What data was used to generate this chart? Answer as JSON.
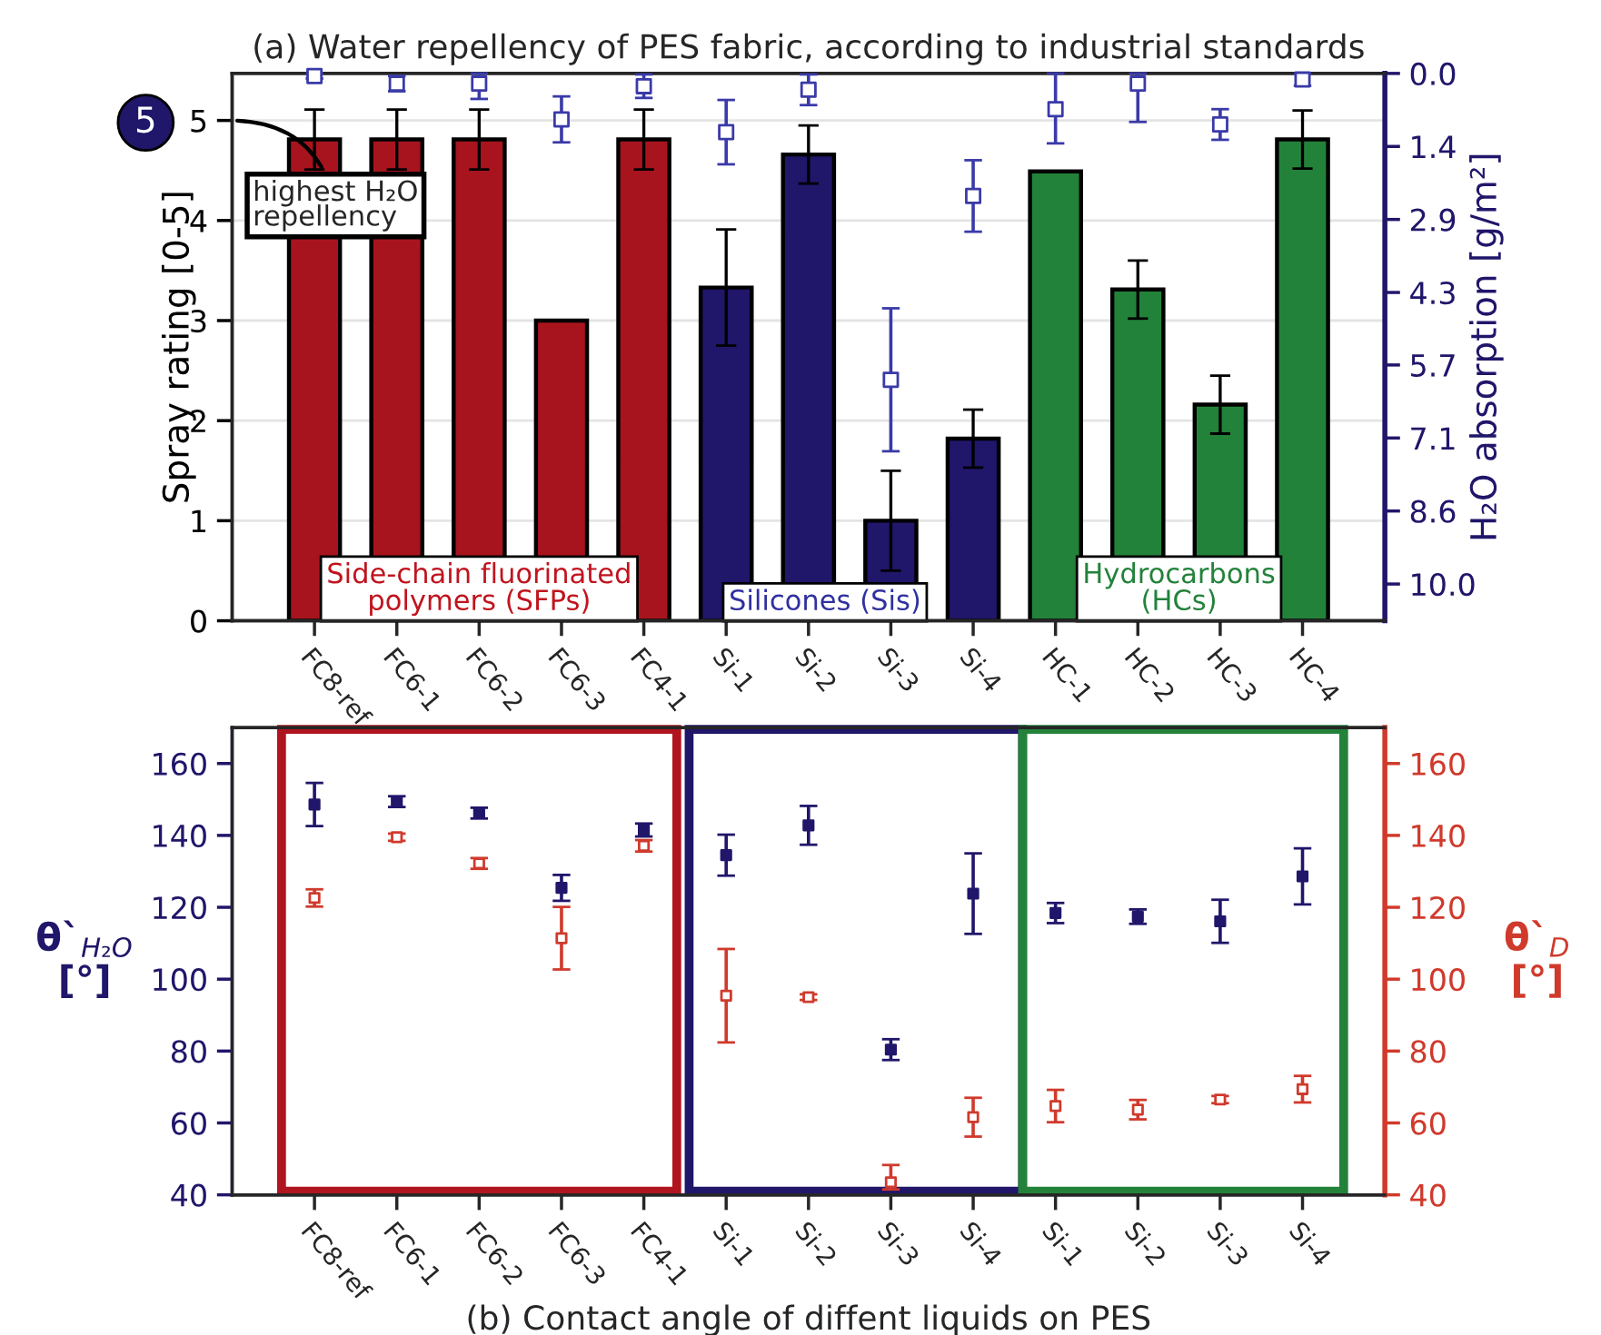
{
  "chart_data": [
    {
      "type": "bar",
      "title": "(a) Water repellency of PES fabric, according to industrial standards",
      "ylabel": "Spray rating [0-5]",
      "y2label": "H₂O absorption [g/m²]",
      "categories": [
        "FC8-ref",
        "FC6-1",
        "FC6-2",
        "FC6-3",
        "FC4-1",
        "Si-1",
        "Si-2",
        "Si-3",
        "Si-4",
        "HC-1",
        "HC-2",
        "HC-3",
        "HC-4"
      ],
      "series": [
        {
          "colors": [
            "#a8141e",
            "#a8141e",
            "#a8141e",
            "#a8141e",
            "#a8141e",
            "#20166a",
            "#20166a",
            "#20166a",
            "#20166a",
            "#23823a",
            "#23823a",
            "#23823a",
            "#23823a"
          ],
          "values": [
            4.81,
            4.81,
            4.81,
            3.0,
            4.81,
            3.33,
            4.66,
            1.0,
            1.82,
            4.49,
            3.31,
            2.16,
            4.81
          ],
          "errors": [
            0.3,
            0.3,
            0.3,
            null,
            0.3,
            0.58,
            0.29,
            0.5,
            0.29,
            null,
            0.29,
            0.29,
            0.29
          ]
        },
        {
          "type": "scatter",
          "axis": "y2",
          "marker": "square",
          "color": "#3a3aa8",
          "values": [
            0.05,
            0.2,
            0.2,
            0.9,
            0.25,
            1.15,
            0.32,
            6.0,
            2.4,
            0.7,
            0.2,
            1.0,
            0.12
          ],
          "errors": [
            0.05,
            0.15,
            [
              0.0,
              0.5
            ],
            0.45,
            0.23,
            0.63,
            0.3,
            1.4,
            0.7,
            [
              0.0,
              1.37
            ],
            [
              0.0,
              0.95
            ],
            0.3,
            0.12
          ]
        }
      ],
      "ylim": [
        0,
        5.47
      ],
      "yticks": [
        0,
        1,
        2,
        3,
        4,
        5
      ],
      "y2lim": [
        10.72,
        0
      ],
      "y2ticks": [
        {
          "value": 0,
          "label": "0.0"
        },
        {
          "value": 1.43,
          "label": "1.4"
        },
        {
          "value": 2.86,
          "label": "2.9"
        },
        {
          "value": 4.29,
          "label": "4.3"
        },
        {
          "value": 5.71,
          "label": "5.7"
        },
        {
          "value": 7.14,
          "label": "7.1"
        },
        {
          "value": 8.57,
          "label": "8.6"
        },
        {
          "value": 10,
          "label": "10.0"
        }
      ],
      "grid": "y",
      "annotations": [
        "5",
        "highest H₂O repellency",
        "Side-chain fluorinated polymers (SFPs)",
        "Silicones (Sis)",
        "Hydrocarbons (HCs)"
      ]
    },
    {
      "type": "scatter",
      "xlabel": "(b) Contact angle of diffent liquids on PES",
      "ylabel": "θ`$_{H₂O}$ [°]",
      "y2label": "θ`$_{D}$ [°]",
      "categories": [
        "FC8-ref",
        "FC6-1",
        "FC6-2",
        "FC6-3",
        "FC4-1",
        "Si-1",
        "Si-2",
        "Si-3",
        "Si-4",
        "Si-1",
        "Si-2",
        "Si-3",
        "Si-4"
      ],
      "series": [
        {
          "marker": "square",
          "color": "#20166a",
          "values": [
            148.6,
            149.4,
            146.2,
            125.4,
            141.5,
            134.5,
            142.8,
            80.4,
            123.8,
            118.4,
            117.4,
            116.1,
            128.6
          ],
          "errors": [
            6,
            1.5,
            1.5,
            3.6,
            1.8,
            5.7,
            5.4,
            2.9,
            11.2,
            2.8,
            2,
            6,
            7.8
          ]
        },
        {
          "axis": "y2",
          "marker": "square",
          "color": "#d03a2c",
          "values": [
            122.6,
            139.5,
            132.2,
            111.4,
            137.1,
            95.4,
            95.0,
            43.5,
            61.6,
            64.7,
            63.7,
            66.5,
            69.4
          ],
          "errors": [
            2.4,
            1,
            1.5,
            8.7,
            1.6,
            13,
            0.8,
            [
              41.5,
              48.3
            ],
            5.4,
            4.5,
            2.7,
            1,
            3.7
          ]
        }
      ],
      "ylim": [
        40,
        170
      ],
      "yticks": [
        40,
        60,
        80,
        100,
        120,
        140,
        160
      ],
      "y2lim": [
        40,
        170
      ],
      "y2ticks": [
        40,
        60,
        80,
        100,
        120,
        140,
        160
      ]
    }
  ]
}
